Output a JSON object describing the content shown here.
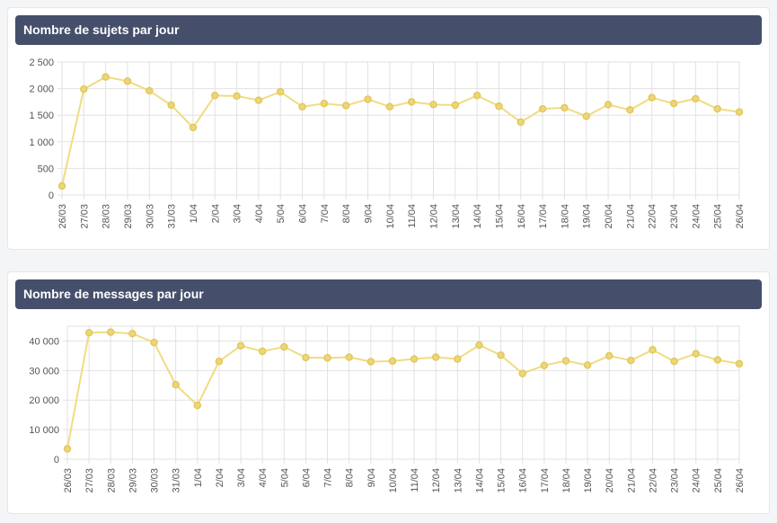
{
  "panels": [
    {
      "title": "Nombre de sujets par jour"
    },
    {
      "title": "Nombre de messages par jour"
    }
  ],
  "colors": {
    "line": "#f0dc82",
    "point_fill": "#ecd67a",
    "point_stroke": "#e2c85c",
    "grid": "#e2e2e2",
    "header": "#454f6b"
  },
  "chart_data": [
    {
      "type": "line",
      "title": "Nombre de sujets par jour",
      "categories": [
        "26/03",
        "27/03",
        "28/03",
        "29/03",
        "30/03",
        "31/03",
        "1/04",
        "2/04",
        "3/04",
        "4/04",
        "5/04",
        "6/04",
        "7/04",
        "8/04",
        "9/04",
        "10/04",
        "11/04",
        "12/04",
        "13/04",
        "14/04",
        "15/04",
        "16/04",
        "17/04",
        "18/04",
        "19/04",
        "20/04",
        "21/04",
        "22/04",
        "23/04",
        "24/04",
        "25/04",
        "26/04"
      ],
      "values": [
        170,
        1990,
        2220,
        2140,
        1960,
        1690,
        1270,
        1870,
        1860,
        1780,
        1940,
        1660,
        1720,
        1680,
        1800,
        1660,
        1750,
        1700,
        1690,
        1870,
        1670,
        1370,
        1620,
        1640,
        1480,
        1700,
        1600,
        1830,
        1720,
        1810,
        1620,
        1560
      ],
      "ylim": [
        0,
        2500
      ],
      "yticks": [
        0,
        500,
        1000,
        1500,
        2000,
        2500
      ],
      "ytick_labels": [
        "0",
        "500",
        "1 000",
        "1 500",
        "2 000",
        "2 500"
      ],
      "grid": true
    },
    {
      "type": "line",
      "title": "Nombre de messages par jour",
      "categories": [
        "26/03",
        "27/03",
        "28/03",
        "29/03",
        "30/03",
        "31/03",
        "1/04",
        "2/04",
        "3/04",
        "4/04",
        "5/04",
        "6/04",
        "7/04",
        "8/04",
        "9/04",
        "10/04",
        "11/04",
        "12/04",
        "13/04",
        "14/04",
        "15/04",
        "16/04",
        "17/04",
        "18/04",
        "19/04",
        "20/04",
        "21/04",
        "22/04",
        "23/04",
        "24/04",
        "25/04",
        "26/04"
      ],
      "values": [
        3500,
        42800,
        43000,
        42500,
        39500,
        25200,
        18200,
        33100,
        38400,
        36500,
        38000,
        34400,
        34300,
        34500,
        33000,
        33200,
        33900,
        34500,
        33900,
        38600,
        35200,
        29000,
        31700,
        33300,
        31800,
        35000,
        33400,
        37000,
        33100,
        35700,
        33600,
        32300
      ],
      "ylim": [
        0,
        45000
      ],
      "yticks": [
        0,
        10000,
        20000,
        30000,
        40000
      ],
      "ytick_labels": [
        "0",
        "10 000",
        "20 000",
        "30 000",
        "40 000"
      ],
      "grid": true
    }
  ]
}
